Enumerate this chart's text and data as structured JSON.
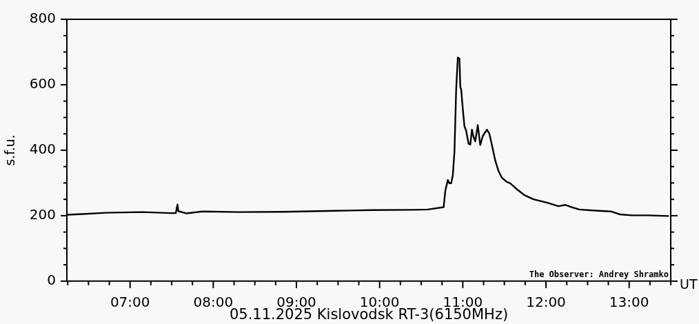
{
  "chart_data": {
    "type": "line",
    "title": "05.11.2025 Kislovodsk RT-3(6150MHz)",
    "xlabel": "UT",
    "ylabel": "s.f.u.",
    "annotations": [
      "The Observer: Andrey Shramko"
    ],
    "x": [
      6.25,
      6.43,
      6.71,
      7.15,
      7.48,
      7.55,
      7.57,
      7.58,
      7.68,
      7.87,
      8.31,
      8.86,
      9.47,
      9.91,
      10.41,
      10.58,
      10.77,
      10.79,
      10.82,
      10.84,
      10.86,
      10.88,
      10.9,
      10.92,
      10.94,
      10.96,
      10.97,
      10.98,
      11.0,
      11.02,
      11.04,
      11.07,
      11.09,
      11.11,
      11.13,
      11.15,
      11.18,
      11.19,
      11.21,
      11.24,
      11.29,
      11.32,
      11.35,
      11.39,
      11.43,
      11.47,
      11.53,
      11.57,
      11.64,
      11.74,
      11.85,
      12.01,
      12.15,
      12.23,
      12.31,
      12.4,
      12.56,
      12.78,
      12.89,
      13.03,
      13.23,
      13.47
    ],
    "values": [
      203,
      205,
      209,
      211,
      208,
      208,
      234,
      214,
      207,
      213,
      211,
      212,
      215,
      217,
      218,
      219,
      226,
      276,
      309,
      299,
      299,
      323,
      396,
      583,
      683,
      680,
      593,
      587,
      527,
      473,
      460,
      420,
      417,
      463,
      440,
      427,
      477,
      457,
      416,
      443,
      463,
      450,
      416,
      369,
      336,
      316,
      303,
      299,
      283,
      263,
      250,
      240,
      229,
      233,
      226,
      219,
      216,
      213,
      204,
      201,
      201,
      199
    ],
    "color": "#000000",
    "xlim": [
      6.24,
      13.5
    ],
    "xticks": [
      {
        "value": 6.25,
        "label": null
      },
      {
        "value": 6.5,
        "label": null
      },
      {
        "value": 6.75,
        "label": null
      },
      {
        "value": 7,
        "label": "07:00"
      },
      {
        "value": 7.25,
        "label": null
      },
      {
        "value": 7.5,
        "label": null
      },
      {
        "value": 7.75,
        "label": null
      },
      {
        "value": 8,
        "label": "08:00"
      },
      {
        "value": 8.25,
        "label": null
      },
      {
        "value": 8.5,
        "label": null
      },
      {
        "value": 8.75,
        "label": null
      },
      {
        "value": 9,
        "label": "09:00"
      },
      {
        "value": 9.25,
        "label": null
      },
      {
        "value": 9.5,
        "label": null
      },
      {
        "value": 9.75,
        "label": null
      },
      {
        "value": 10,
        "label": "10:00"
      },
      {
        "value": 10.25,
        "label": null
      },
      {
        "value": 10.5,
        "label": null
      },
      {
        "value": 10.75,
        "label": null
      },
      {
        "value": 11,
        "label": "11:00"
      },
      {
        "value": 11.25,
        "label": null
      },
      {
        "value": 11.5,
        "label": null
      },
      {
        "value": 11.75,
        "label": null
      },
      {
        "value": 12,
        "label": "12:00"
      },
      {
        "value": 12.25,
        "label": null
      },
      {
        "value": 12.5,
        "label": null
      },
      {
        "value": 12.75,
        "label": null
      },
      {
        "value": 13,
        "label": "13:00"
      },
      {
        "value": 13.25,
        "label": null
      },
      {
        "value": 13.5,
        "label": null
      }
    ],
    "ylim": [
      0,
      800
    ],
    "yticks": [
      0,
      {
        "value": 50,
        "label": null
      },
      {
        "value": 100,
        "label": null
      },
      {
        "value": 150,
        "label": null
      },
      200,
      {
        "value": 250,
        "label": null
      },
      {
        "value": 300,
        "label": null
      },
      {
        "value": 350,
        "label": null
      },
      400,
      {
        "value": 450,
        "label": null
      },
      {
        "value": 500,
        "label": null
      },
      {
        "value": 550,
        "label": null
      },
      600,
      {
        "value": 650,
        "label": null
      },
      {
        "value": 700,
        "label": null
      },
      {
        "value": 750,
        "label": null
      },
      800
    ]
  }
}
